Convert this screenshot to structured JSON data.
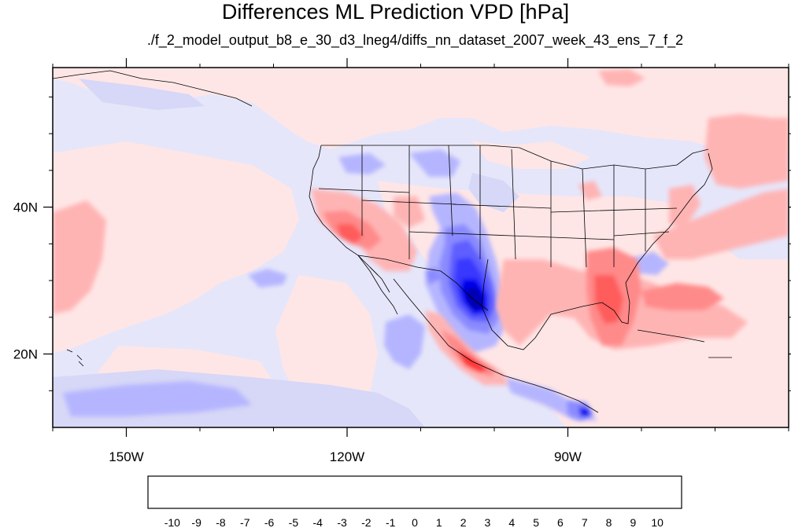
{
  "title": "Differences ML Prediction VPD [hPa]",
  "subtitle": "./f_2_model_output_b8_e_30_d3_lneg4/diffs_nn_dataset_2007_week_43_ens_7_f_2",
  "map": {
    "lon_range": [
      -160,
      -60
    ],
    "lat_range": [
      10,
      59
    ],
    "lon_ticks": [
      {
        "lon": -150,
        "label": "150W"
      },
      {
        "lon": -120,
        "label": "120W"
      },
      {
        "lon": -90,
        "label": "90W"
      }
    ],
    "lat_ticks": [
      {
        "lat": 40,
        "label": "40N"
      },
      {
        "lat": 20,
        "label": "20N"
      }
    ],
    "background_color": "#e6e6fa"
  },
  "colorbar": {
    "labels": [
      "-10",
      "-9",
      "-8",
      "-7",
      "-6",
      "-5",
      "-4",
      "-3",
      "-2",
      "-1",
      "0",
      "1",
      "2",
      "3",
      "4",
      "5",
      "6",
      "7",
      "8",
      "9",
      "10"
    ],
    "colors": [
      "#00006f",
      "#00008f",
      "#0000b0",
      "#0000cf",
      "#0000ee",
      "#0000ff",
      "#3737ff",
      "#5f5fff",
      "#8b8bff",
      "#b5b5ff",
      "#e6e6fa",
      "#ffe6e6",
      "#ffb4b4",
      "#ff8a8a",
      "#ff5c5c",
      "#ff3636",
      "#ff0000",
      "#dd0000",
      "#c00000",
      "#a50000",
      "#8c0000",
      "#6f0000"
    ]
  }
}
